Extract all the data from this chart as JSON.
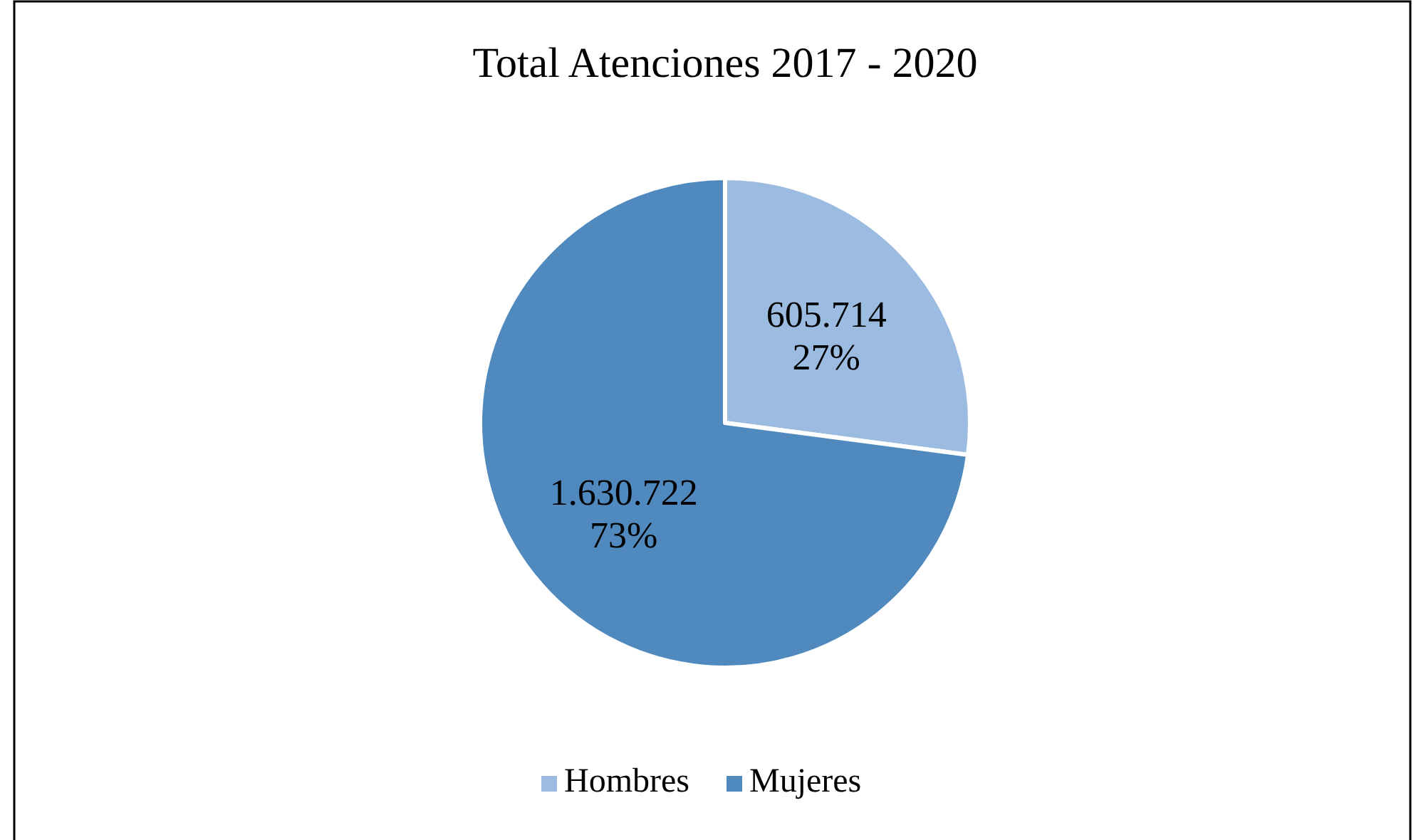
{
  "chart_data": {
    "type": "pie",
    "title": "Total Atenciones 2017 - 2020",
    "categories": [
      "Hombres",
      "Mujeres"
    ],
    "values": [
      605714,
      1630722
    ],
    "colors": [
      "#9cbbe0",
      "#4f89bd"
    ],
    "value_labels": [
      "605.714\n27%",
      "1.630.722\n73%"
    ],
    "legend": "bottom"
  }
}
